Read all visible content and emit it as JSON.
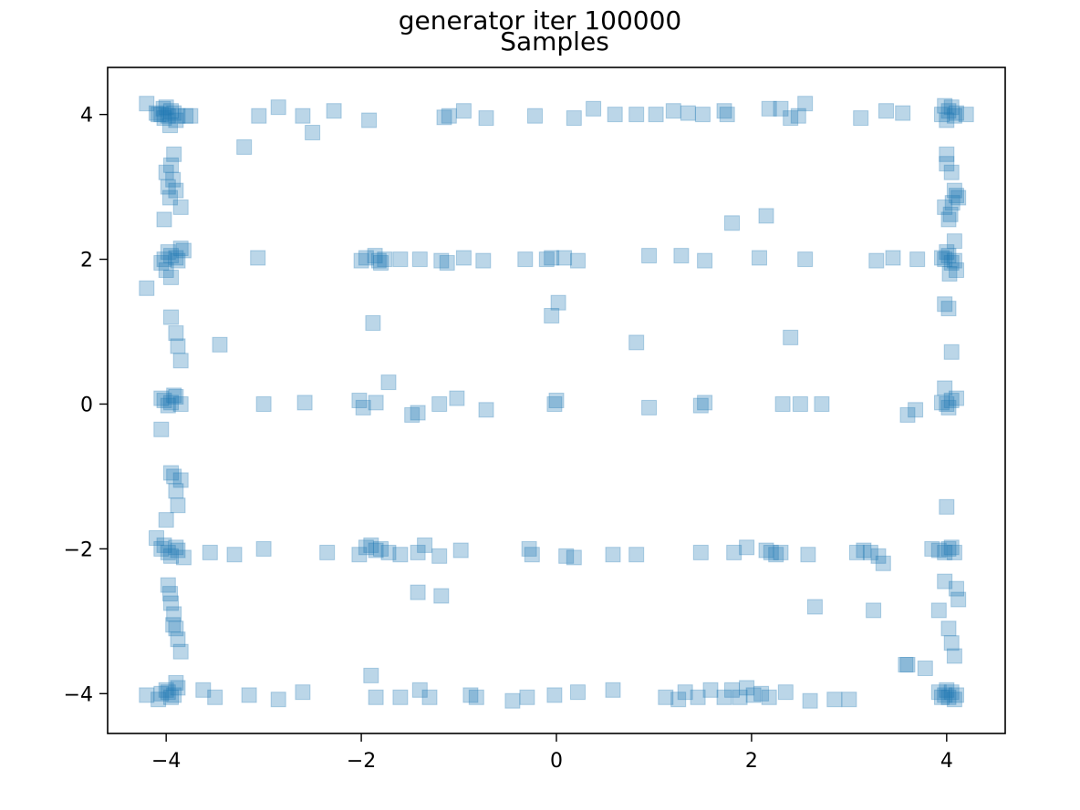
{
  "chart_data": {
    "type": "scatter",
    "title": "generator iter 100000",
    "subtitle": "Samples",
    "xlabel": "",
    "ylabel": "",
    "xlim": [
      -4.6,
      4.6
    ],
    "ylim": [
      -4.55,
      4.65
    ],
    "xticks": [
      -4,
      -2,
      0,
      2,
      4
    ],
    "yticks": [
      -4,
      -2,
      0,
      2,
      4
    ],
    "tick_labels_x": [
      "−4",
      "−2",
      "0",
      "2",
      "4"
    ],
    "tick_labels_y": [
      "−4",
      "−2",
      "0",
      "2",
      "4"
    ],
    "grid": false,
    "legend": "none",
    "marker": "square",
    "color": "#1f77b4",
    "alpha": 0.3,
    "series": [
      {
        "x": [
          -4.05,
          -3.98,
          -3.92,
          -4.02,
          -3.95,
          -4.08,
          -3.9,
          -4.0,
          -3.96,
          -4.03,
          -3.88,
          -4.1,
          -4.2,
          -3.8,
          -3.75,
          -3.2,
          -3.05,
          -2.85,
          -2.6,
          -2.5,
          -2.28,
          -1.92,
          -1.15,
          -1.1,
          -0.95,
          -0.72,
          -0.22,
          0.18,
          0.38,
          0.6,
          0.82,
          1.02,
          1.2,
          1.35,
          1.5,
          1.72,
          1.75,
          2.18,
          2.3,
          2.4,
          2.55,
          2.48,
          3.12,
          3.38,
          3.55,
          3.95,
          4.02,
          4.08,
          4.0,
          4.05,
          3.98,
          4.1,
          4.2,
          -3.92,
          -3.95,
          -4.0,
          -3.98,
          -3.9,
          -3.96,
          -3.85,
          -4.02,
          -3.93,
          -4.02,
          -3.95,
          -3.88,
          -3.98,
          -4.05,
          -3.9,
          -4.0,
          -3.85,
          -3.95,
          -4.2,
          -3.82,
          -3.06,
          -2.0,
          -1.95,
          -1.86,
          -1.82,
          -1.8,
          -1.76,
          -1.6,
          -1.4,
          -1.18,
          -1.12,
          -0.95,
          -0.75,
          -0.32,
          -0.1,
          -0.05,
          0.08,
          0.22,
          0.95,
          1.28,
          1.52,
          2.08,
          2.55,
          3.28,
          3.45,
          3.7,
          3.98,
          4.02,
          4.05,
          4.0,
          4.08,
          3.95,
          4.1,
          4.0,
          4.05,
          4.08,
          3.98,
          4.02,
          4.06,
          4.0,
          4.1,
          4.04,
          4.12,
          4.08,
          4.03,
          -3.95,
          -3.9,
          -3.88,
          -3.85,
          -3.45,
          -1.88,
          -0.05,
          0.02,
          0.82,
          1.8,
          2.15,
          2.4,
          3.98,
          4.02,
          4.05,
          -4.02,
          -3.95,
          -3.9,
          -3.98,
          -4.05,
          -3.92,
          -3.85,
          -3.0,
          -2.58,
          -2.02,
          -1.98,
          -1.85,
          -1.72,
          -1.48,
          -1.42,
          -1.2,
          -1.02,
          -0.72,
          -0.02,
          0.0,
          0.95,
          1.52,
          1.48,
          2.32,
          2.5,
          2.72,
          3.6,
          3.68,
          3.95,
          4.0,
          4.05,
          4.02,
          4.1,
          3.98,
          -3.95,
          -3.92,
          -3.9,
          -3.88,
          -4.0,
          -4.05,
          -3.85,
          -4.05,
          -3.98,
          -3.9,
          -3.95,
          -4.02,
          -3.88,
          -4.1,
          -3.82,
          -3.55,
          -3.3,
          -3.0,
          -2.35,
          -2.02,
          -1.95,
          -1.9,
          -1.85,
          -1.8,
          -1.72,
          -1.6,
          -1.42,
          -1.35,
          -1.2,
          -0.98,
          -0.28,
          -0.25,
          0.1,
          0.18,
          0.58,
          0.82,
          1.48,
          1.82,
          1.95,
          2.15,
          2.2,
          2.25,
          2.3,
          2.58,
          3.08,
          3.15,
          3.22,
          3.3,
          3.35,
          3.85,
          3.92,
          3.98,
          4.02,
          4.05,
          4.08,
          -3.98,
          -3.95,
          -3.92,
          -3.9,
          -3.88,
          -3.85,
          -3.96,
          -3.93,
          -1.42,
          -1.18,
          2.65,
          3.25,
          3.6,
          3.78,
          3.92,
          3.98,
          4.02,
          4.05,
          4.1,
          4.12,
          4.08,
          4.0,
          -4.05,
          -3.98,
          -3.92,
          -4.0,
          -3.95,
          -3.88,
          -4.08,
          -3.9,
          -4.2,
          -3.62,
          -3.5,
          -3.15,
          -2.85,
          -2.6,
          -1.9,
          -1.85,
          -1.6,
          -1.4,
          -1.3,
          -0.88,
          -0.82,
          -0.45,
          -0.3,
          -0.02,
          0.22,
          0.58,
          1.12,
          1.25,
          1.32,
          1.45,
          1.58,
          1.72,
          1.8,
          1.88,
          1.95,
          2.02,
          2.1,
          2.18,
          2.35,
          2.6,
          2.85,
          3.0,
          3.58,
          3.92,
          3.98,
          4.02,
          4.05,
          4.08,
          4.1,
          4.0,
          3.95
        ],
        "y": [
          4.0,
          3.98,
          4.02,
          3.95,
          4.05,
          4.0,
          3.92,
          4.1,
          3.85,
          4.08,
          3.98,
          4.02,
          4.15,
          3.98,
          3.98,
          3.55,
          3.98,
          4.1,
          3.98,
          3.75,
          4.05,
          3.92,
          3.96,
          3.98,
          4.05,
          3.95,
          3.98,
          3.95,
          4.08,
          4.0,
          4.0,
          4.0,
          4.05,
          4.02,
          4.0,
          4.05,
          4.0,
          4.08,
          4.08,
          3.95,
          4.15,
          3.98,
          3.95,
          4.05,
          4.02,
          4.0,
          4.05,
          3.98,
          3.92,
          4.1,
          4.12,
          4.02,
          4.0,
          3.45,
          3.3,
          3.2,
          3.0,
          2.95,
          2.85,
          2.72,
          2.55,
          3.1,
          2.0,
          2.05,
          1.98,
          2.1,
          1.95,
          2.02,
          1.85,
          2.15,
          1.75,
          1.6,
          2.12,
          2.02,
          1.98,
          2.02,
          2.05,
          1.98,
          1.95,
          2.0,
          2.0,
          2.0,
          1.98,
          1.95,
          2.02,
          1.98,
          2.0,
          2.0,
          2.02,
          2.02,
          1.98,
          2.05,
          2.05,
          1.98,
          2.02,
          2.0,
          1.98,
          2.02,
          2.0,
          2.0,
          2.05,
          1.95,
          2.1,
          1.98,
          2.02,
          1.85,
          3.45,
          3.2,
          2.95,
          2.72,
          2.55,
          2.78,
          3.32,
          2.88,
          2.62,
          2.85,
          2.25,
          1.8,
          1.2,
          0.98,
          0.8,
          0.6,
          0.82,
          1.12,
          1.22,
          1.4,
          0.85,
          2.5,
          2.6,
          0.92,
          1.38,
          1.32,
          0.72,
          0.05,
          0.02,
          0.1,
          -0.02,
          0.08,
          0.12,
          0.0,
          0.0,
          0.02,
          0.05,
          -0.05,
          0.02,
          0.3,
          -0.15,
          -0.12,
          0.0,
          0.08,
          -0.08,
          0.0,
          0.05,
          -0.05,
          0.02,
          -0.02,
          0.0,
          0.0,
          0.0,
          -0.15,
          -0.08,
          0.02,
          0.0,
          0.05,
          -0.05,
          0.08,
          0.22,
          -0.95,
          -1.0,
          -1.2,
          -1.4,
          -1.6,
          -0.35,
          -1.05,
          -2.0,
          -2.05,
          -1.98,
          -2.1,
          -1.95,
          -2.02,
          -1.85,
          -2.12,
          -2.05,
          -2.08,
          -2.0,
          -2.05,
          -2.08,
          -1.98,
          -1.95,
          -2.02,
          -2.0,
          -2.05,
          -2.08,
          -2.05,
          -1.95,
          -2.1,
          -2.02,
          -2.0,
          -2.08,
          -2.1,
          -2.12,
          -2.08,
          -2.08,
          -2.05,
          -2.05,
          -1.98,
          -2.02,
          -2.05,
          -2.08,
          -2.05,
          -2.08,
          -2.05,
          -2.02,
          -2.05,
          -2.1,
          -2.2,
          -2.0,
          -2.02,
          -2.05,
          -2.0,
          -1.98,
          -2.05,
          -2.5,
          -2.75,
          -2.9,
          -3.1,
          -3.25,
          -3.42,
          -2.62,
          -3.05,
          -2.6,
          -2.65,
          -2.8,
          -2.85,
          -3.6,
          -3.65,
          -2.85,
          -2.45,
          -3.1,
          -3.3,
          -2.55,
          -2.7,
          -3.48,
          -1.42,
          -4.0,
          -3.98,
          -4.02,
          -3.95,
          -4.05,
          -3.92,
          -4.08,
          -3.85,
          -4.02,
          -3.95,
          -4.05,
          -4.02,
          -4.08,
          -3.98,
          -3.75,
          -4.05,
          -4.05,
          -3.95,
          -4.05,
          -4.02,
          -4.05,
          -4.1,
          -4.05,
          -4.02,
          -3.98,
          -3.95,
          -4.05,
          -4.08,
          -3.98,
          -4.05,
          -3.95,
          -4.05,
          -3.95,
          -4.05,
          -3.92,
          -4.02,
          -4.0,
          -4.05,
          -3.98,
          -4.1,
          -4.08,
          -4.08,
          -3.6,
          -3.98,
          -4.02,
          -4.05,
          -3.98,
          -4.08,
          -4.02,
          -3.95,
          -4.05
        ]
      }
    ]
  }
}
